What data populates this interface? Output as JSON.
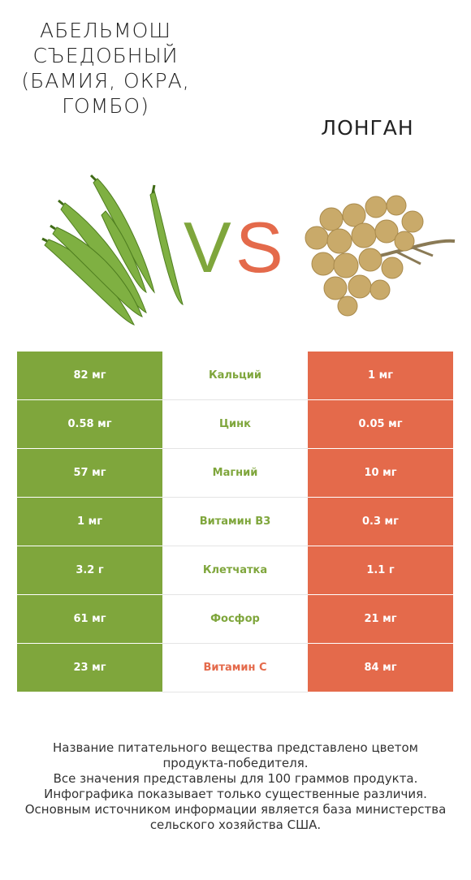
{
  "left_food": {
    "name": "АБЕЛЬМОШ СЪЕДОБНЫЙ (БАМИЯ, ОКРА, ГОМБО)",
    "image_icon": "okra-photo"
  },
  "right_food": {
    "name": "ЛОНГАН",
    "image_icon": "longan-photo"
  },
  "vs": {
    "v": "V",
    "s": "S"
  },
  "colors": {
    "left": "#7fa63c",
    "right": "#e46a4b"
  },
  "rows": [
    {
      "left": "82 мг",
      "nutrient": "Кальций",
      "right": "1 мг",
      "winner": "left"
    },
    {
      "left": "0.58 мг",
      "nutrient": "Цинк",
      "right": "0.05 мг",
      "winner": "left"
    },
    {
      "left": "57 мг",
      "nutrient": "Магний",
      "right": "10 мг",
      "winner": "left"
    },
    {
      "left": "1 мг",
      "nutrient": "Витамин B3",
      "right": "0.3 мг",
      "winner": "left"
    },
    {
      "left": "3.2 г",
      "nutrient": "Клетчатка",
      "right": "1.1 г",
      "winner": "left"
    },
    {
      "left": "61 мг",
      "nutrient": "Фосфор",
      "right": "21 мг",
      "winner": "left"
    },
    {
      "left": "23 мг",
      "nutrient": "Витамин C",
      "right": "84 мг",
      "winner": "right"
    }
  ],
  "footnote": [
    "Название питательного вещества представлено цветом",
    "продукта-победителя.",
    "Все значения представлены для 100 граммов продукта.",
    "Инфографика показывает только существенные различия.",
    "Основным источником информации является база министерства",
    "сельского хозяйства США."
  ]
}
